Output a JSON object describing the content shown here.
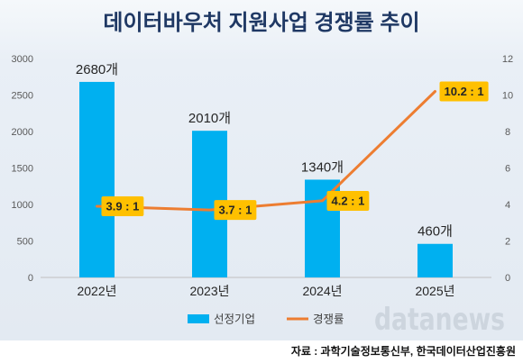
{
  "chart_data": {
    "type": "bar",
    "title": "데이터바우처 지원사업 경쟁률 추이",
    "categories": [
      "2022년",
      "2023년",
      "2024년",
      "2025년"
    ],
    "series": [
      {
        "name": "선정기업",
        "type": "bar",
        "axis": "left",
        "values": [
          2680,
          2010,
          1340,
          460
        ],
        "labels": [
          "2680개",
          "2010개",
          "1340개",
          "460개"
        ],
        "color": "#00b0f0"
      },
      {
        "name": "경쟁률",
        "type": "line",
        "axis": "right",
        "values": [
          3.9,
          3.7,
          4.2,
          10.2
        ],
        "labels": [
          "3.9 : 1",
          "3.7 : 1",
          "4.2 : 1",
          "10.2 : 1"
        ],
        "color": "#ed7d31",
        "label_box_color": "#ffc000"
      }
    ],
    "y_left": {
      "range": [
        0,
        3000
      ],
      "ticks": [
        0,
        500,
        1000,
        1500,
        2000,
        2500,
        3000
      ]
    },
    "y_right": {
      "range": [
        0,
        12
      ],
      "ticks": [
        0,
        2,
        4,
        6,
        8,
        10,
        12
      ]
    },
    "grid": false,
    "legend_position": "bottom"
  },
  "watermark": "datanews",
  "source": "자료 : 과학기술정보통신부, 한국데이터산업진흥원",
  "colors": {
    "title": "#1f3864",
    "panel_background": "#e6edf5"
  }
}
